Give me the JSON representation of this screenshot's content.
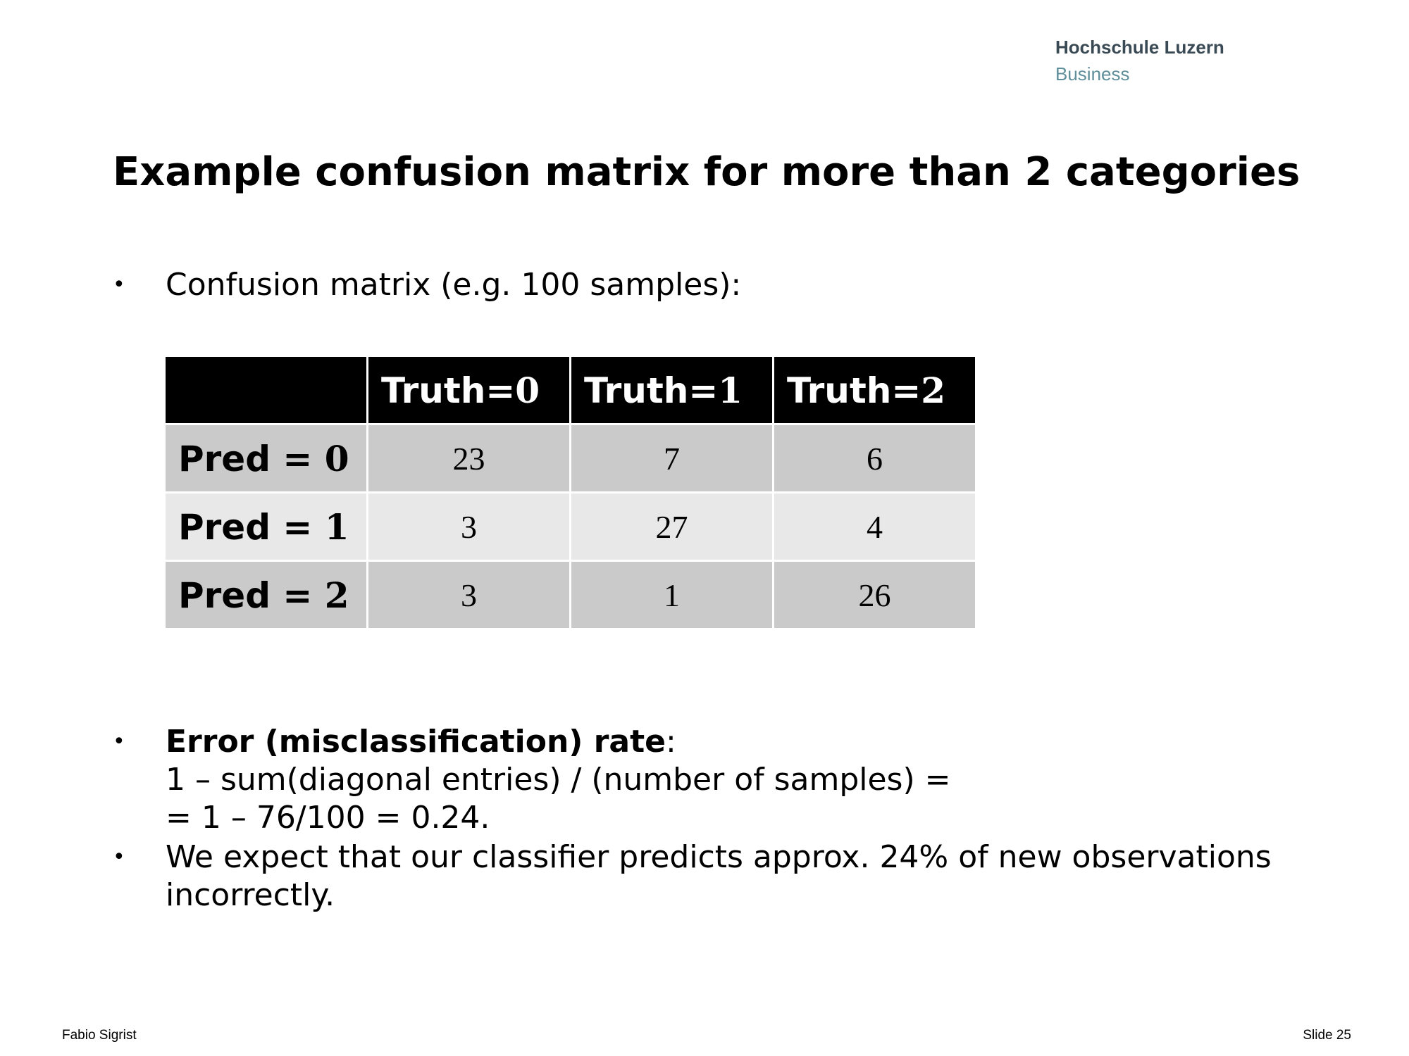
{
  "logo": {
    "line1": "Hochschule Luzern",
    "line2": "Business"
  },
  "title": "Example confusion matrix for more than 2 categories",
  "bullets": {
    "symbol": "•",
    "intro": "Confusion matrix (e.g. 100 samples):",
    "error_bold": "Error (misclassification) rate",
    "error_colon": ":",
    "error_line2": "1 – sum(diagonal entries) / (number of samples) =",
    "error_line3": "= 1 – 76/100 = 0.24.",
    "expect": "We expect that our classifier predicts approx. 24% of new observations incorrectly."
  },
  "matrix": {
    "columns": [
      {
        "prefix": "Truth=",
        "num": "0"
      },
      {
        "prefix": "Truth=",
        "num": "1"
      },
      {
        "prefix": "Truth=",
        "num": "2"
      }
    ],
    "rows": [
      {
        "prefix": "Pred = ",
        "num": "0",
        "values": [
          "23",
          "7",
          "6"
        ]
      },
      {
        "prefix": "Pred = ",
        "num": "1",
        "values": [
          "3",
          "27",
          "4"
        ]
      },
      {
        "prefix": "Pred = ",
        "num": "2",
        "values": [
          "3",
          "1",
          "26"
        ]
      }
    ]
  },
  "footer": {
    "author": "Fabio Sigrist",
    "slide": "Slide 25"
  }
}
